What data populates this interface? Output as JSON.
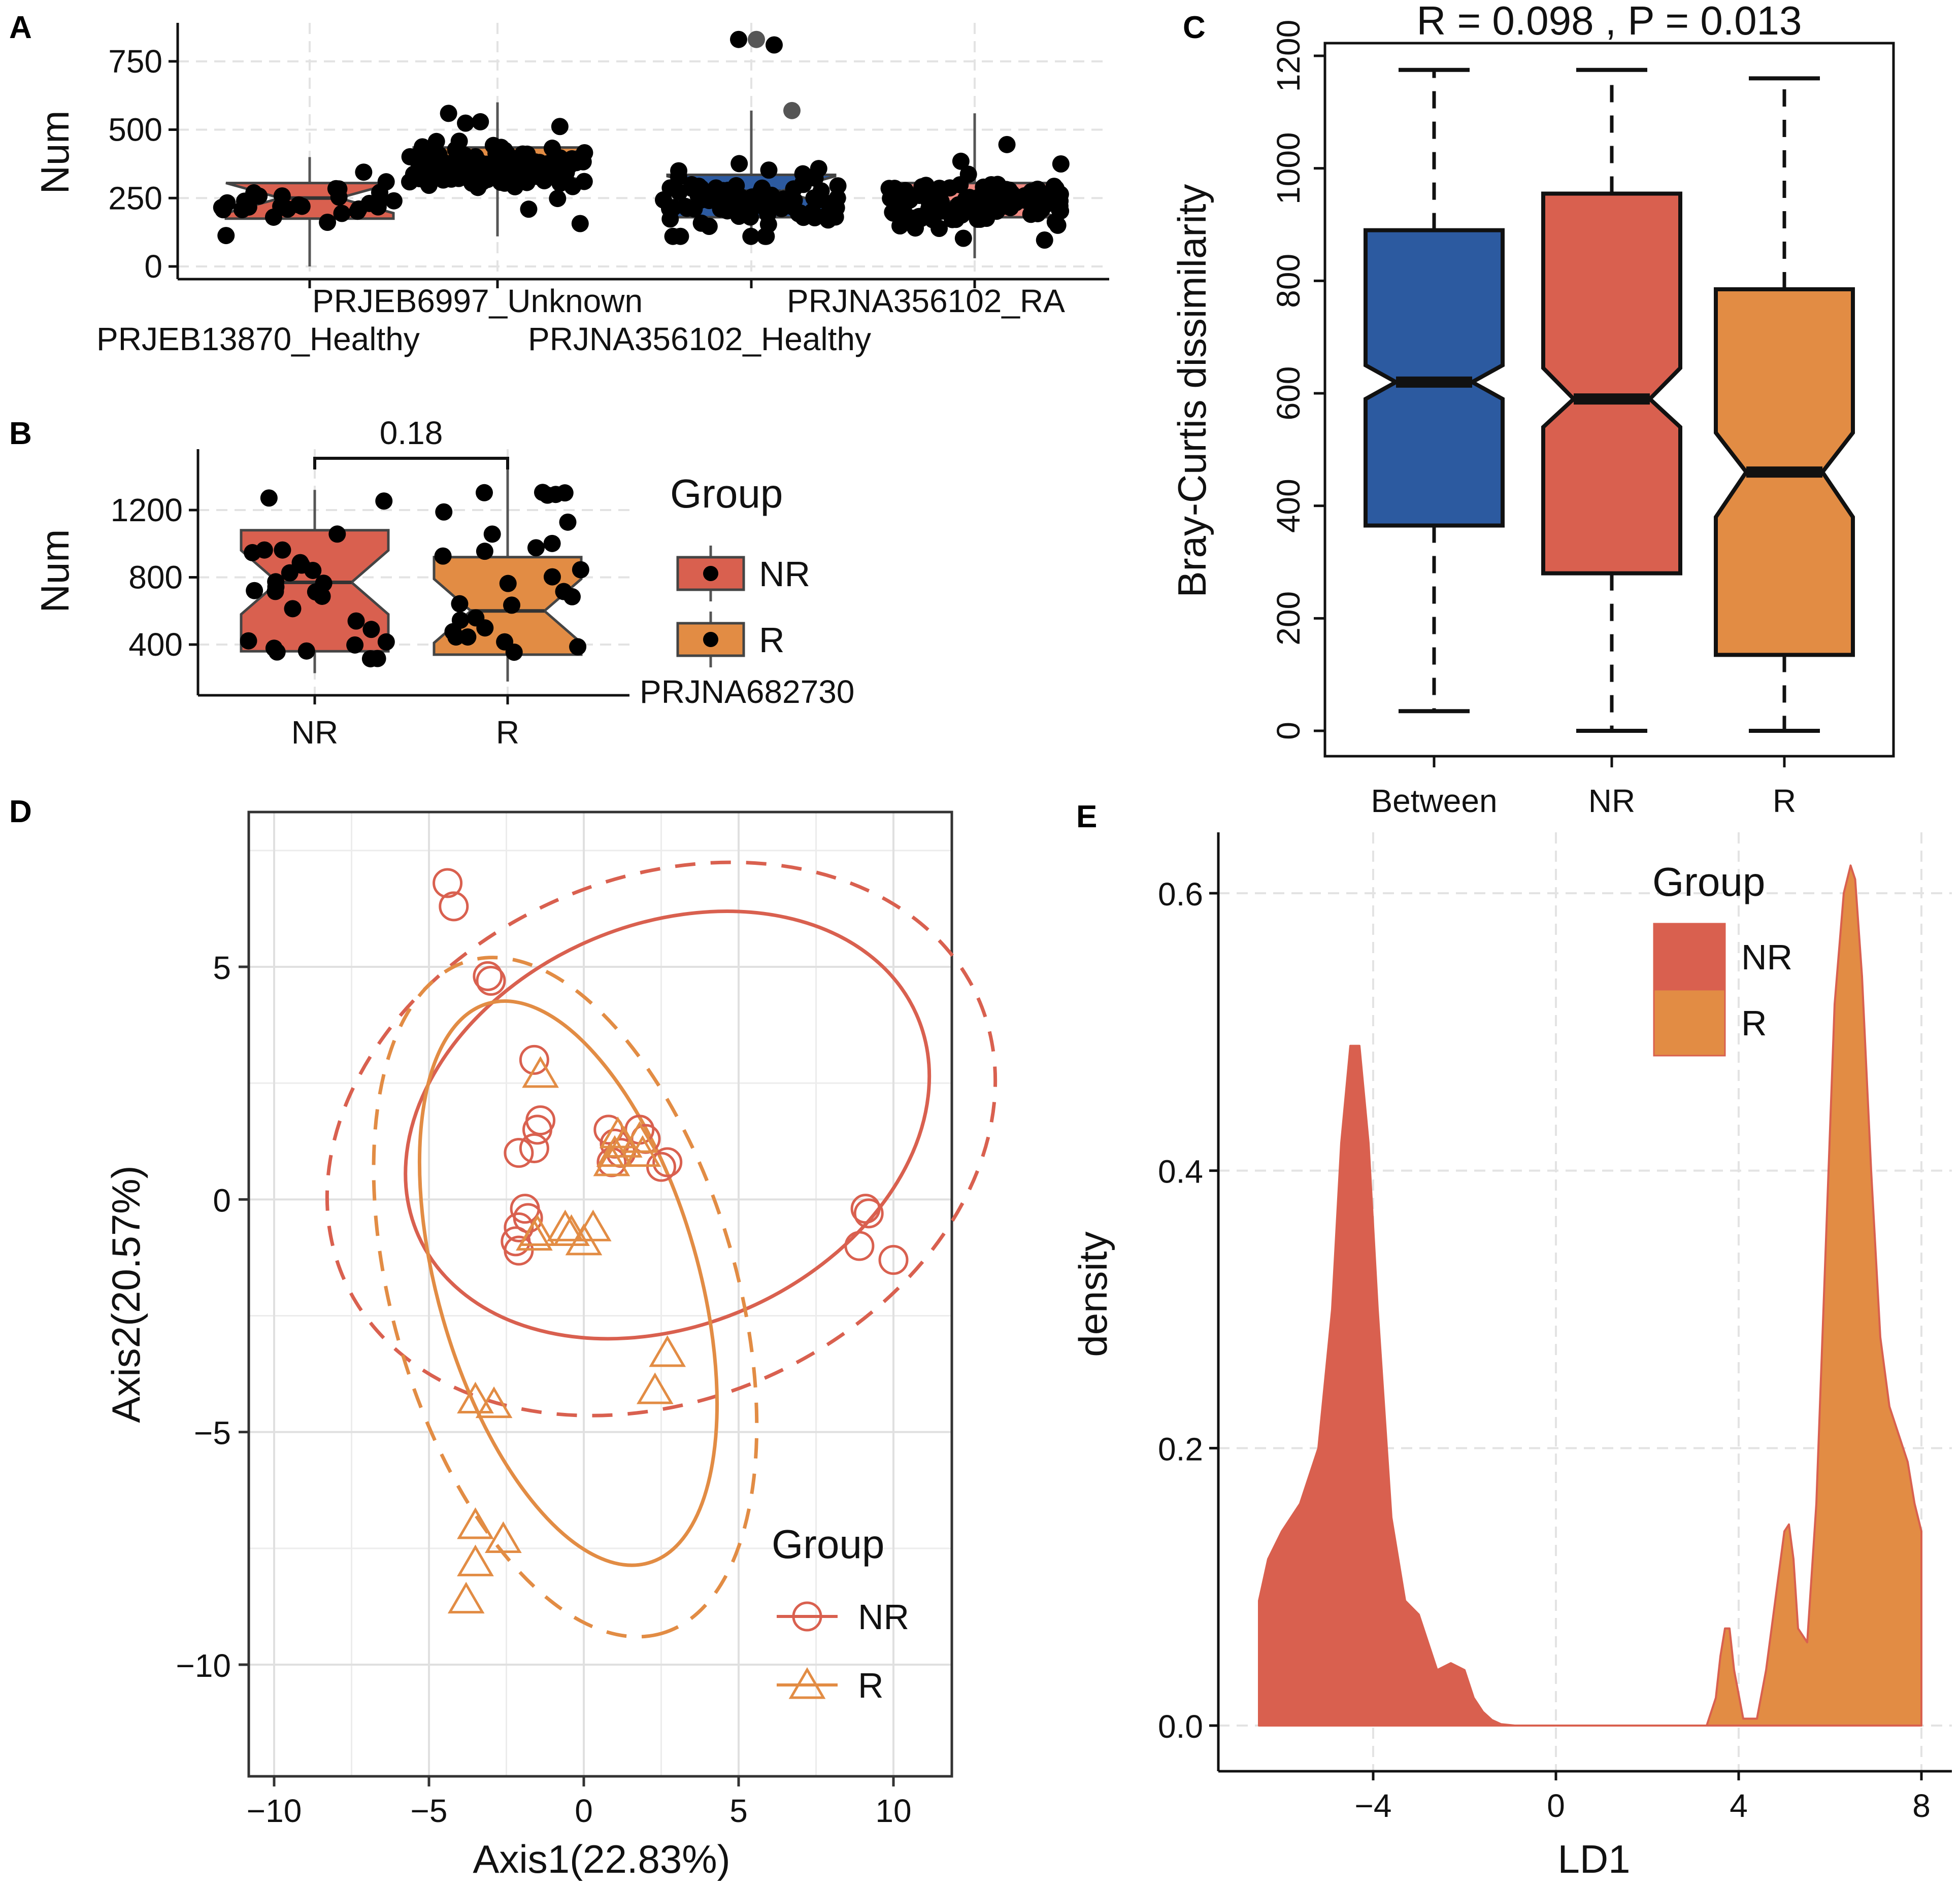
{
  "colors": {
    "NR": "#d9604f",
    "R": "#e28c44",
    "between": "#2c5aa0",
    "nr_light": "#f08a82",
    "text": "#111111",
    "grid": "#e3e3e3"
  },
  "panels": {
    "A": "A",
    "B": "B",
    "C": "C",
    "D": "D",
    "E": "E"
  },
  "chart_data": [
    {
      "id": "A",
      "type": "box",
      "title": "",
      "ylabel": "Num",
      "ylim": [
        0,
        900
      ],
      "yticks": [
        0,
        250,
        500,
        750
      ],
      "categories": [
        "PRJEB13870_Healthy",
        "PRJEB6997_Unknown",
        "PRJNA356102_Healthy",
        "PRJNA356102_RA"
      ],
      "series": [
        {
          "name": "PRJEB13870_Healthy",
          "q1": 175,
          "median": 250,
          "q3": 305,
          "whisker_low": 0,
          "whisker_high": 400,
          "color": "#d9604f"
        },
        {
          "name": "PRJEB6997_Unknown",
          "q1": 305,
          "median": 370,
          "q3": 435,
          "whisker_low": 110,
          "whisker_high": 600,
          "color": "#e28c44"
        },
        {
          "name": "PRJNA356102_Healthy",
          "q1": 180,
          "median": 275,
          "q3": 335,
          "whisker_low": 110,
          "whisker_high": 570,
          "color": "#2c5aa0"
        },
        {
          "name": "PRJNA356102_RA",
          "q1": 180,
          "median": 235,
          "q3": 305,
          "whisker_low": 30,
          "whisker_high": 560,
          "color": "#f08a82"
        }
      ],
      "outliers": [
        {
          "category": "PRJNA356102_Healthy",
          "values": [
            830,
            830,
            810,
            570
          ]
        }
      ]
    },
    {
      "id": "B",
      "type": "box",
      "title": "",
      "ylabel": "Num",
      "ylim": [
        150,
        1500
      ],
      "yticks": [
        400,
        800,
        1200
      ],
      "categories": [
        "NR",
        "R"
      ],
      "series": [
        {
          "name": "NR",
          "q1": 360,
          "median": 770,
          "q3": 1080,
          "whisker_low": 230,
          "whisker_high": 1320,
          "color": "#d9604f"
        },
        {
          "name": "R",
          "q1": 340,
          "median": 600,
          "q3": 920,
          "whisker_low": 180,
          "whisker_high": 1450,
          "color": "#e28c44"
        }
      ],
      "pvalue": "0.18",
      "dataset_label": "PRJNA682730",
      "legend": {
        "title": "Group",
        "items": [
          "NR",
          "R"
        ]
      }
    },
    {
      "id": "C",
      "type": "box",
      "title": "R =  0.098 ,  P =  0.013",
      "xlabel": "",
      "ylabel": "Bray-Curtis dissimilarity",
      "ylim": [
        0,
        1200
      ],
      "yticks": [
        0,
        200,
        400,
        600,
        800,
        1000,
        1200
      ],
      "categories": [
        "Between",
        "NR",
        "R"
      ],
      "series": [
        {
          "name": "Between",
          "q1": 365,
          "median": 620,
          "q3": 890,
          "whisker_low": 35,
          "whisker_high": 1175,
          "notch_low": 590,
          "notch_high": 650,
          "color": "#2c5aa0"
        },
        {
          "name": "NR",
          "q1": 280,
          "median": 590,
          "q3": 955,
          "whisker_low": 0,
          "whisker_high": 1175,
          "notch_low": 540,
          "notch_high": 645,
          "color": "#d9604f"
        },
        {
          "name": "R",
          "q1": 135,
          "median": 460,
          "q3": 785,
          "whisker_low": 0,
          "whisker_high": 1160,
          "notch_low": 380,
          "notch_high": 530,
          "color": "#e28c44"
        }
      ]
    },
    {
      "id": "D",
      "type": "scatter",
      "xlabel": "Axis1(22.83%)",
      "ylabel": "Axis2(20.57%)",
      "xlim": [
        -10.5,
        12
      ],
      "ylim": [
        -12.3,
        7.7
      ],
      "xticks": [
        -10,
        -5,
        0,
        5,
        10
      ],
      "yticks": [
        -10,
        -5,
        0,
        5
      ],
      "legend": {
        "title": "Group",
        "items": [
          "NR",
          "R"
        ]
      },
      "series": [
        {
          "name": "NR",
          "marker": "circle",
          "x": [
            -4.4,
            -4.2,
            -3.1,
            -3.0,
            -1.6,
            -1.5,
            -1.4,
            -2.1,
            -1.6,
            -1.9,
            -1.8,
            -2.1,
            -2.2,
            -2.1,
            0.8,
            1.0,
            1.8,
            2.0,
            2.7,
            2.5,
            0.9,
            1.2,
            9.2,
            9.1,
            8.9,
            10.0
          ],
          "y": [
            6.8,
            6.3,
            4.8,
            4.7,
            3.0,
            1.5,
            1.7,
            1.0,
            1.1,
            -0.2,
            -0.4,
            -0.6,
            -0.9,
            -1.1,
            1.5,
            1.2,
            1.5,
            1.3,
            0.8,
            0.7,
            0.8,
            1.0,
            -0.3,
            -0.2,
            -1.0,
            -1.3
          ]
        },
        {
          "name": "R",
          "marker": "triangle",
          "x": [
            -1.4,
            1.1,
            1.3,
            1.0,
            1.8,
            1.9,
            0.9,
            -0.6,
            -0.4,
            0.3,
            0.0,
            -1.5,
            -1.6,
            -3.5,
            -2.9,
            -3.5,
            -2.6,
            -3.5,
            -3.8,
            2.7,
            2.3
          ],
          "y": [
            2.7,
            1.4,
            1.2,
            1.0,
            1.3,
            1.0,
            0.8,
            -0.6,
            -0.7,
            -0.6,
            -0.9,
            -0.7,
            -0.8,
            -4.3,
            -4.4,
            -7.0,
            -7.3,
            -7.8,
            -8.6,
            -3.3,
            -4.1
          ]
        }
      ],
      "ellipses": [
        {
          "group": "NR",
          "style": "solid",
          "cx": 2.7,
          "cy": 1.6,
          "rx": 8.8,
          "ry": 4.3,
          "angle": -24
        },
        {
          "group": "NR",
          "style": "dashed",
          "cx": 2.5,
          "cy": 1.3,
          "rx": 11.2,
          "ry": 5.6,
          "angle": -24
        },
        {
          "group": "R",
          "style": "solid",
          "cx": -0.5,
          "cy": -1.8,
          "rx": 9.4,
          "ry": 2.8,
          "angle": 74
        },
        {
          "group": "R",
          "style": "dashed",
          "cx": -0.6,
          "cy": -2.1,
          "rx": 11.3,
          "ry": 3.7,
          "angle": 74
        }
      ]
    },
    {
      "id": "E",
      "type": "area",
      "xlabel": "LD1",
      "ylabel": "density",
      "xlim": [
        -6.6,
        8.6
      ],
      "ylim": [
        -0.02,
        0.66
      ],
      "xticks": [
        -4,
        0,
        4,
        8
      ],
      "yticks": [
        0.0,
        0.2,
        0.4,
        0.6
      ],
      "legend": {
        "title": "Group",
        "items": [
          "NR",
          "R"
        ]
      },
      "series": [
        {
          "name": "NR",
          "x": [
            -6.5,
            -6.3,
            -6.0,
            -5.6,
            -5.2,
            -4.9,
            -4.7,
            -4.5,
            -4.3,
            -4.1,
            -3.9,
            -3.6,
            -3.3,
            -3.0,
            -2.8,
            -2.6,
            -2.3,
            -2.0,
            -1.8,
            -1.6,
            -1.4,
            -1.2,
            -0.9,
            -0.5,
            0.0,
            0.5,
            1.0,
            1.5,
            2.0,
            2.5,
            3.0,
            3.3
          ],
          "y": [
            0.09,
            0.12,
            0.14,
            0.16,
            0.2,
            0.3,
            0.42,
            0.49,
            0.49,
            0.42,
            0.3,
            0.15,
            0.09,
            0.08,
            0.06,
            0.04,
            0.045,
            0.04,
            0.02,
            0.01,
            0.004,
            0.001,
            0,
            0,
            0,
            0,
            0,
            0,
            0,
            0,
            0,
            0
          ]
        },
        {
          "name": "R",
          "x": [
            3.3,
            3.5,
            3.6,
            3.7,
            3.8,
            3.9,
            4.1,
            4.4,
            4.6,
            4.8,
            5.0,
            5.1,
            5.2,
            5.3,
            5.5,
            5.7,
            5.9,
            6.1,
            6.3,
            6.45,
            6.55,
            6.7,
            6.9,
            7.1,
            7.3,
            7.5,
            7.7,
            7.85,
            8.0
          ],
          "y": [
            0,
            0.02,
            0.05,
            0.07,
            0.07,
            0.04,
            0.005,
            0.005,
            0.04,
            0.09,
            0.14,
            0.145,
            0.12,
            0.07,
            0.06,
            0.16,
            0.34,
            0.52,
            0.6,
            0.62,
            0.61,
            0.54,
            0.4,
            0.28,
            0.23,
            0.21,
            0.19,
            0.16,
            0.14
          ]
        }
      ]
    }
  ]
}
